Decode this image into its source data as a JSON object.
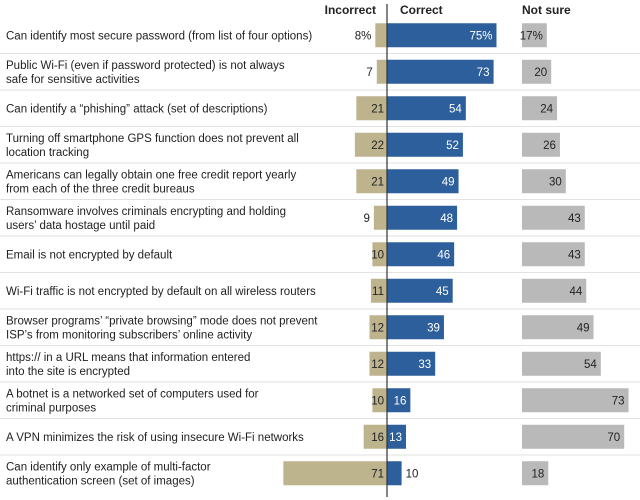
{
  "chart_data": {
    "type": "bar",
    "title": "",
    "columns": {
      "incorrect": "Incorrect",
      "correct": "Correct",
      "not_sure": "Not sure"
    },
    "colors": {
      "incorrect": "#bdb48e",
      "correct": "#2c5f9b",
      "not_sure": "#b9b9b9"
    },
    "categories": [
      [
        "Can identify most secure password (from list of four options)"
      ],
      [
        "Public Wi-Fi (even if password protected) is not always",
        "safe for sensitive activities"
      ],
      [
        "Can identify a “phishing” attack (set of descriptions)"
      ],
      [
        "Turning off smartphone GPS function does not prevent all",
        "location tracking"
      ],
      [
        "Americans can legally obtain one free credit report yearly",
        "from each of the three credit bureaus"
      ],
      [
        "Ransomware involves criminals encrypting and holding",
        "users’ data hostage until paid"
      ],
      [
        "Email is not encrypted by default"
      ],
      [
        "Wi-Fi traffic is not encrypted by default on all wireless routers"
      ],
      [
        "Browser programs’ “private browsing” mode does not prevent",
        "ISP’s from monitoring subscribers’ online activity"
      ],
      [
        "https:// in a URL means that information entered",
        "into the site is encrypted"
      ],
      [
        "A botnet is a networked set of computers used for",
        "criminal purposes"
      ],
      [
        "A VPN minimizes the risk of using insecure Wi-Fi networks"
      ],
      [
        "Can identify only example of multi-factor",
        "authentication screen (set of images)"
      ]
    ],
    "series": [
      {
        "name": "Incorrect",
        "values": [
          8,
          7,
          21,
          22,
          21,
          9,
          10,
          11,
          12,
          12,
          10,
          16,
          71
        ],
        "labels": [
          "8%",
          "7",
          "21",
          "22",
          "21",
          "9",
          "10",
          "11",
          "12",
          "12",
          "10",
          "16",
          "71"
        ]
      },
      {
        "name": "Correct",
        "values": [
          75,
          73,
          54,
          52,
          49,
          48,
          46,
          45,
          39,
          33,
          16,
          13,
          10
        ],
        "labels": [
          "75%",
          "73",
          "54",
          "52",
          "49",
          "48",
          "46",
          "45",
          "39",
          "33",
          "16",
          "13",
          "10"
        ]
      },
      {
        "name": "Not sure",
        "values": [
          17,
          20,
          24,
          26,
          30,
          43,
          43,
          44,
          49,
          54,
          73,
          70,
          18
        ],
        "labels": [
          "17%",
          "20",
          "24",
          "26",
          "30",
          "43",
          "43",
          "44",
          "49",
          "54",
          "73",
          "70",
          "18"
        ]
      }
    ]
  }
}
